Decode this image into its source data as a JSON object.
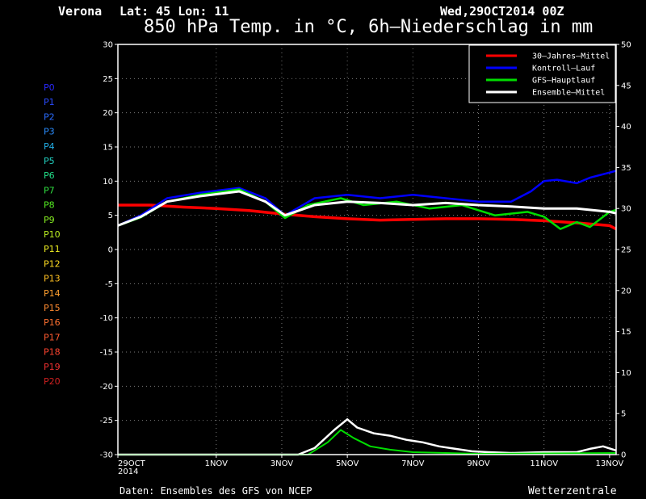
{
  "header": {
    "location": "Verona",
    "coords": "Lat: 45 Lon: 11",
    "date": "Wed,29OCT2014 00Z",
    "title": "850 hPa Temp. in °C, 6h–Niederschlag in mm"
  },
  "footer": {
    "source": "Daten: Ensembles des GFS von NCEP",
    "brand": "Wetterzentrale"
  },
  "legend": [
    {
      "label": "30–Jahres–Mittel",
      "color": "#ff0000"
    },
    {
      "label": "Kontroll–Lauf",
      "color": "#0000ff"
    },
    {
      "label": "GFS–Hauptlauf",
      "color": "#00dd00"
    },
    {
      "label": "Ensemble–Mittel",
      "color": "#ffffff"
    }
  ],
  "members": [
    {
      "label": "P0",
      "color": "#2a2aff"
    },
    {
      "label": "P1",
      "color": "#2a4bff"
    },
    {
      "label": "P2",
      "color": "#2a6cff"
    },
    {
      "label": "P3",
      "color": "#2a8dff"
    },
    {
      "label": "P4",
      "color": "#22b0e8"
    },
    {
      "label": "P5",
      "color": "#22d0c0"
    },
    {
      "label": "P6",
      "color": "#22e08a"
    },
    {
      "label": "P7",
      "color": "#30e040"
    },
    {
      "label": "P8",
      "color": "#55ee22"
    },
    {
      "label": "P9",
      "color": "#88f022"
    },
    {
      "label": "P10",
      "color": "#bbf022"
    },
    {
      "label": "P11",
      "color": "#eeee22"
    },
    {
      "label": "P12",
      "color": "#ffdd22"
    },
    {
      "label": "P13",
      "color": "#ffc022"
    },
    {
      "label": "P14",
      "color": "#ffa030"
    },
    {
      "label": "P15",
      "color": "#ff8a30"
    },
    {
      "label": "P16",
      "color": "#ff7030"
    },
    {
      "label": "P17",
      "color": "#ff5a30"
    },
    {
      "label": "P18",
      "color": "#ff4430"
    },
    {
      "label": "P19",
      "color": "#f03030"
    },
    {
      "label": "P20",
      "color": "#d02020"
    }
  ],
  "chart_data": {
    "type": "line",
    "x_unit": "days since 29OCT2014 00Z",
    "xlim": [
      0,
      15.2
    ],
    "ylim_left": [
      -30,
      30
    ],
    "ylim_right": [
      0,
      50
    ],
    "y_ticks_left": [
      30,
      25,
      20,
      15,
      10,
      5,
      0,
      -5,
      -10,
      -15,
      -20,
      -25,
      -30
    ],
    "y_ticks_right": [
      50,
      45,
      40,
      35,
      30,
      25,
      20,
      15,
      10,
      5,
      0
    ],
    "x_ticks": [
      {
        "x": 0,
        "label": "29OCT",
        "label2": "2014"
      },
      {
        "x": 3,
        "label": "1NOV"
      },
      {
        "x": 5,
        "label": "3NOV"
      },
      {
        "x": 7,
        "label": "5NOV"
      },
      {
        "x": 9,
        "label": "7NOV"
      },
      {
        "x": 11,
        "label": "9NOV"
      },
      {
        "x": 13,
        "label": "11NOV"
      },
      {
        "x": 15,
        "label": "13NOV"
      }
    ],
    "grid": true,
    "legend_position": "top-right",
    "temperature_series": [
      {
        "name": "30–Jahres–Mittel",
        "color": "#ff0000",
        "width": 3.5,
        "points": [
          [
            0,
            6.5
          ],
          [
            1,
            6.5
          ],
          [
            2,
            6.2
          ],
          [
            3,
            6.0
          ],
          [
            4,
            5.7
          ],
          [
            5,
            5.2
          ],
          [
            6,
            4.8
          ],
          [
            7,
            4.5
          ],
          [
            8,
            4.3
          ],
          [
            9,
            4.4
          ],
          [
            10,
            4.5
          ],
          [
            11,
            4.5
          ],
          [
            12,
            4.4
          ],
          [
            13,
            4.2
          ],
          [
            14,
            3.9
          ],
          [
            15,
            3.5
          ],
          [
            15.2,
            3.0
          ]
        ]
      },
      {
        "name": "Kontroll–Lauf",
        "color": "#0000ff",
        "width": 2.5,
        "points": [
          [
            0,
            3.5
          ],
          [
            0.7,
            5.0
          ],
          [
            1.5,
            7.5
          ],
          [
            2.5,
            8.3
          ],
          [
            3.7,
            9.0
          ],
          [
            4.5,
            7.5
          ],
          [
            5.1,
            5.0
          ],
          [
            6,
            7.5
          ],
          [
            7,
            8.0
          ],
          [
            8,
            7.5
          ],
          [
            9,
            8.0
          ],
          [
            10,
            7.5
          ],
          [
            11,
            7.0
          ],
          [
            12,
            7.0
          ],
          [
            12.6,
            8.5
          ],
          [
            13,
            10.0
          ],
          [
            13.4,
            10.2
          ],
          [
            14,
            9.7
          ],
          [
            14.4,
            10.5
          ],
          [
            15.2,
            11.5
          ]
        ]
      },
      {
        "name": "GFS–Hauptlauf",
        "color": "#00dd00",
        "width": 2.5,
        "points": [
          [
            0,
            3.5
          ],
          [
            0.7,
            4.7
          ],
          [
            1.5,
            7.0
          ],
          [
            2.5,
            8.0
          ],
          [
            3.7,
            8.8
          ],
          [
            4.5,
            7.0
          ],
          [
            5.1,
            4.6
          ],
          [
            5.8,
            6.5
          ],
          [
            6.8,
            7.5
          ],
          [
            7.5,
            6.5
          ],
          [
            8.5,
            7.0
          ],
          [
            9.5,
            6.0
          ],
          [
            10.5,
            6.5
          ],
          [
            11.5,
            5.0
          ],
          [
            12.5,
            5.5
          ],
          [
            13,
            4.8
          ],
          [
            13.5,
            3.0
          ],
          [
            14,
            4.0
          ],
          [
            14.4,
            3.3
          ],
          [
            15,
            5.5
          ],
          [
            15.2,
            5.8
          ]
        ]
      },
      {
        "name": "Ensemble–Mittel",
        "color": "#ffffff",
        "width": 3,
        "points": [
          [
            0,
            3.5
          ],
          [
            0.7,
            4.8
          ],
          [
            1.5,
            7.0
          ],
          [
            2.5,
            7.8
          ],
          [
            3.7,
            8.5
          ],
          [
            4.5,
            7.0
          ],
          [
            5.1,
            5.0
          ],
          [
            6,
            6.5
          ],
          [
            7,
            7.0
          ],
          [
            8,
            6.8
          ],
          [
            9,
            6.5
          ],
          [
            10,
            6.8
          ],
          [
            11,
            6.5
          ],
          [
            12,
            6.3
          ],
          [
            13,
            6.0
          ],
          [
            14,
            6.0
          ],
          [
            15,
            5.5
          ],
          [
            15.2,
            5.3
          ]
        ]
      }
    ],
    "precip_series": [
      {
        "name": "Ensemble–Mittel",
        "color": "#ffffff",
        "width": 2.5,
        "points": [
          [
            0,
            0
          ],
          [
            5.5,
            0
          ],
          [
            6,
            0.8
          ],
          [
            6.6,
            3.0
          ],
          [
            7,
            4.3
          ],
          [
            7.3,
            3.3
          ],
          [
            7.8,
            2.6
          ],
          [
            8.3,
            2.3
          ],
          [
            8.8,
            1.8
          ],
          [
            9.3,
            1.5
          ],
          [
            9.8,
            1.0
          ],
          [
            10.3,
            0.7
          ],
          [
            10.8,
            0.4
          ],
          [
            11.3,
            0.3
          ],
          [
            12,
            0.2
          ],
          [
            13,
            0.3
          ],
          [
            14,
            0.3
          ],
          [
            14.4,
            0.7
          ],
          [
            14.8,
            1.0
          ],
          [
            15.2,
            0.5
          ]
        ]
      },
      {
        "name": "GFS–Hauptlauf",
        "color": "#00dd00",
        "width": 2,
        "points": [
          [
            0,
            0
          ],
          [
            5.8,
            0
          ],
          [
            6.4,
            1.5
          ],
          [
            6.8,
            3.0
          ],
          [
            7.2,
            2.0
          ],
          [
            7.7,
            1.0
          ],
          [
            8.3,
            0.6
          ],
          [
            9,
            0.3
          ],
          [
            11,
            0.1
          ],
          [
            15.2,
            0.2
          ]
        ]
      }
    ]
  }
}
